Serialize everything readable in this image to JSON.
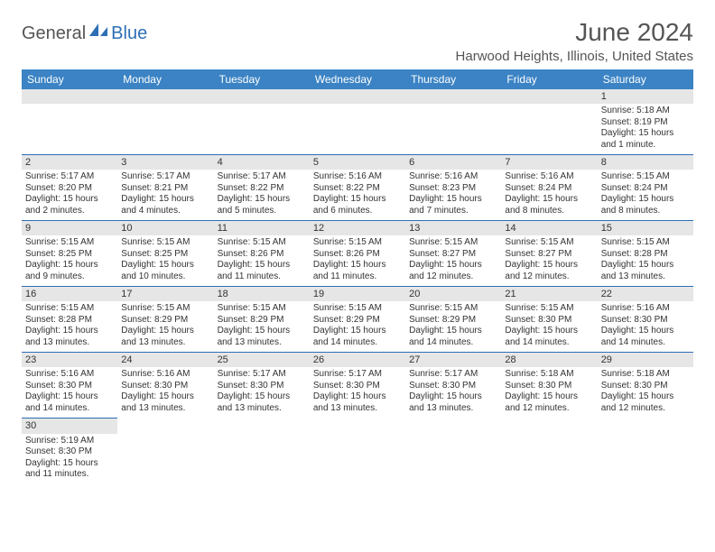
{
  "logo": {
    "general": "General",
    "blue": "Blue"
  },
  "title": "June 2024",
  "location": "Harwood Heights, Illinois, United States",
  "colors": {
    "header_bg": "#3b83c4",
    "header_fg": "#ffffff",
    "grid_line": "#2e6fb5",
    "daynum_bg": "#e6e6e6",
    "text": "#333333",
    "title_text": "#555555"
  },
  "weekdays": [
    "Sunday",
    "Monday",
    "Tuesday",
    "Wednesday",
    "Thursday",
    "Friday",
    "Saturday"
  ],
  "weeks": [
    [
      null,
      null,
      null,
      null,
      null,
      null,
      {
        "n": "1",
        "sr": "Sunrise: 5:18 AM",
        "ss": "Sunset: 8:19 PM",
        "d1": "Daylight: 15 hours",
        "d2": "and 1 minute."
      }
    ],
    [
      {
        "n": "2",
        "sr": "Sunrise: 5:17 AM",
        "ss": "Sunset: 8:20 PM",
        "d1": "Daylight: 15 hours",
        "d2": "and 2 minutes."
      },
      {
        "n": "3",
        "sr": "Sunrise: 5:17 AM",
        "ss": "Sunset: 8:21 PM",
        "d1": "Daylight: 15 hours",
        "d2": "and 4 minutes."
      },
      {
        "n": "4",
        "sr": "Sunrise: 5:17 AM",
        "ss": "Sunset: 8:22 PM",
        "d1": "Daylight: 15 hours",
        "d2": "and 5 minutes."
      },
      {
        "n": "5",
        "sr": "Sunrise: 5:16 AM",
        "ss": "Sunset: 8:22 PM",
        "d1": "Daylight: 15 hours",
        "d2": "and 6 minutes."
      },
      {
        "n": "6",
        "sr": "Sunrise: 5:16 AM",
        "ss": "Sunset: 8:23 PM",
        "d1": "Daylight: 15 hours",
        "d2": "and 7 minutes."
      },
      {
        "n": "7",
        "sr": "Sunrise: 5:16 AM",
        "ss": "Sunset: 8:24 PM",
        "d1": "Daylight: 15 hours",
        "d2": "and 8 minutes."
      },
      {
        "n": "8",
        "sr": "Sunrise: 5:15 AM",
        "ss": "Sunset: 8:24 PM",
        "d1": "Daylight: 15 hours",
        "d2": "and 8 minutes."
      }
    ],
    [
      {
        "n": "9",
        "sr": "Sunrise: 5:15 AM",
        "ss": "Sunset: 8:25 PM",
        "d1": "Daylight: 15 hours",
        "d2": "and 9 minutes."
      },
      {
        "n": "10",
        "sr": "Sunrise: 5:15 AM",
        "ss": "Sunset: 8:25 PM",
        "d1": "Daylight: 15 hours",
        "d2": "and 10 minutes."
      },
      {
        "n": "11",
        "sr": "Sunrise: 5:15 AM",
        "ss": "Sunset: 8:26 PM",
        "d1": "Daylight: 15 hours",
        "d2": "and 11 minutes."
      },
      {
        "n": "12",
        "sr": "Sunrise: 5:15 AM",
        "ss": "Sunset: 8:26 PM",
        "d1": "Daylight: 15 hours",
        "d2": "and 11 minutes."
      },
      {
        "n": "13",
        "sr": "Sunrise: 5:15 AM",
        "ss": "Sunset: 8:27 PM",
        "d1": "Daylight: 15 hours",
        "d2": "and 12 minutes."
      },
      {
        "n": "14",
        "sr": "Sunrise: 5:15 AM",
        "ss": "Sunset: 8:27 PM",
        "d1": "Daylight: 15 hours",
        "d2": "and 12 minutes."
      },
      {
        "n": "15",
        "sr": "Sunrise: 5:15 AM",
        "ss": "Sunset: 8:28 PM",
        "d1": "Daylight: 15 hours",
        "d2": "and 13 minutes."
      }
    ],
    [
      {
        "n": "16",
        "sr": "Sunrise: 5:15 AM",
        "ss": "Sunset: 8:28 PM",
        "d1": "Daylight: 15 hours",
        "d2": "and 13 minutes."
      },
      {
        "n": "17",
        "sr": "Sunrise: 5:15 AM",
        "ss": "Sunset: 8:29 PM",
        "d1": "Daylight: 15 hours",
        "d2": "and 13 minutes."
      },
      {
        "n": "18",
        "sr": "Sunrise: 5:15 AM",
        "ss": "Sunset: 8:29 PM",
        "d1": "Daylight: 15 hours",
        "d2": "and 13 minutes."
      },
      {
        "n": "19",
        "sr": "Sunrise: 5:15 AM",
        "ss": "Sunset: 8:29 PM",
        "d1": "Daylight: 15 hours",
        "d2": "and 14 minutes."
      },
      {
        "n": "20",
        "sr": "Sunrise: 5:15 AM",
        "ss": "Sunset: 8:29 PM",
        "d1": "Daylight: 15 hours",
        "d2": "and 14 minutes."
      },
      {
        "n": "21",
        "sr": "Sunrise: 5:15 AM",
        "ss": "Sunset: 8:30 PM",
        "d1": "Daylight: 15 hours",
        "d2": "and 14 minutes."
      },
      {
        "n": "22",
        "sr": "Sunrise: 5:16 AM",
        "ss": "Sunset: 8:30 PM",
        "d1": "Daylight: 15 hours",
        "d2": "and 14 minutes."
      }
    ],
    [
      {
        "n": "23",
        "sr": "Sunrise: 5:16 AM",
        "ss": "Sunset: 8:30 PM",
        "d1": "Daylight: 15 hours",
        "d2": "and 14 minutes."
      },
      {
        "n": "24",
        "sr": "Sunrise: 5:16 AM",
        "ss": "Sunset: 8:30 PM",
        "d1": "Daylight: 15 hours",
        "d2": "and 13 minutes."
      },
      {
        "n": "25",
        "sr": "Sunrise: 5:17 AM",
        "ss": "Sunset: 8:30 PM",
        "d1": "Daylight: 15 hours",
        "d2": "and 13 minutes."
      },
      {
        "n": "26",
        "sr": "Sunrise: 5:17 AM",
        "ss": "Sunset: 8:30 PM",
        "d1": "Daylight: 15 hours",
        "d2": "and 13 minutes."
      },
      {
        "n": "27",
        "sr": "Sunrise: 5:17 AM",
        "ss": "Sunset: 8:30 PM",
        "d1": "Daylight: 15 hours",
        "d2": "and 13 minutes."
      },
      {
        "n": "28",
        "sr": "Sunrise: 5:18 AM",
        "ss": "Sunset: 8:30 PM",
        "d1": "Daylight: 15 hours",
        "d2": "and 12 minutes."
      },
      {
        "n": "29",
        "sr": "Sunrise: 5:18 AM",
        "ss": "Sunset: 8:30 PM",
        "d1": "Daylight: 15 hours",
        "d2": "and 12 minutes."
      }
    ],
    [
      {
        "n": "30",
        "sr": "Sunrise: 5:19 AM",
        "ss": "Sunset: 8:30 PM",
        "d1": "Daylight: 15 hours",
        "d2": "and 11 minutes."
      },
      null,
      null,
      null,
      null,
      null,
      null
    ]
  ]
}
